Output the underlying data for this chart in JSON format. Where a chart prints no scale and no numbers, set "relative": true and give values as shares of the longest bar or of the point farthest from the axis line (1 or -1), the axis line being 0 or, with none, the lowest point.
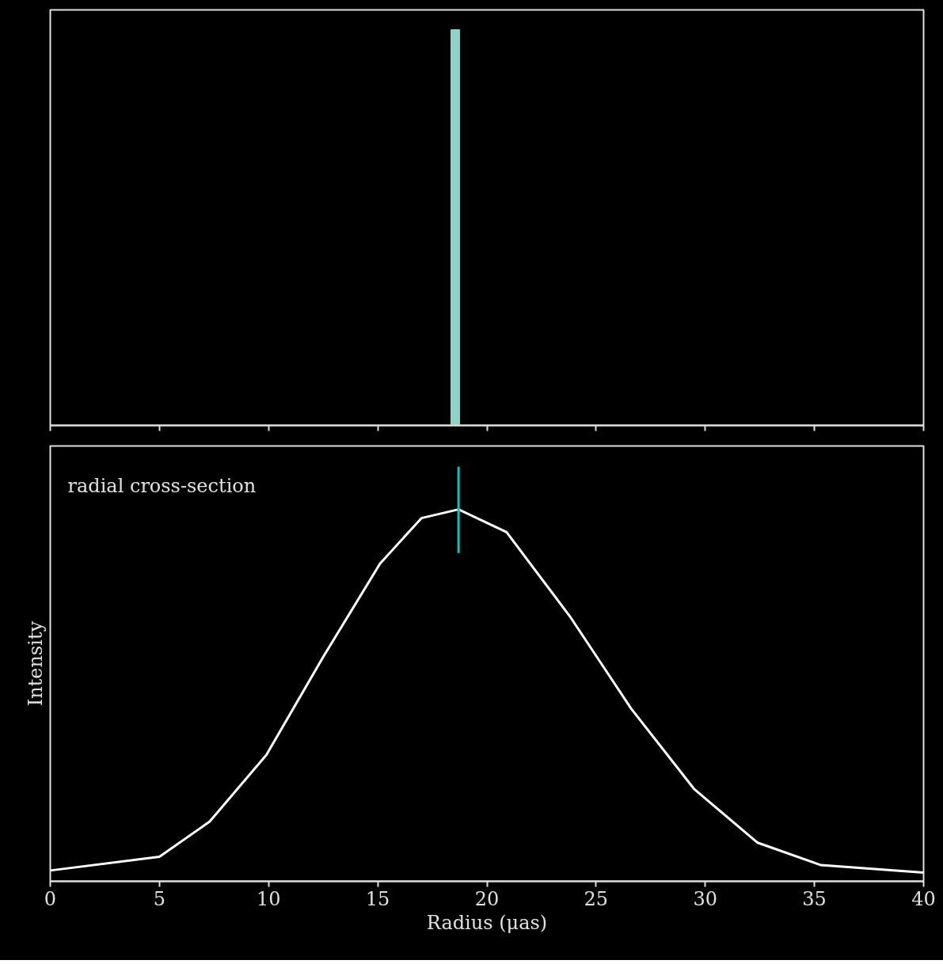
{
  "chart_data": [
    {
      "type": "bar",
      "relative": true,
      "x": [
        18.55
      ],
      "values": [
        1
      ],
      "color": "#8fd3c6",
      "xlim": [
        0,
        40
      ],
      "xticks": [
        0,
        5,
        10,
        15,
        20,
        25,
        30,
        35,
        40
      ],
      "tick_labels": false
    },
    {
      "type": "line",
      "relative": true,
      "annotations": [
        "radial cross-section"
      ],
      "xlabel": "Radius (μas)",
      "ylabel": "Intensity",
      "xlim": [
        0,
        40
      ],
      "xticks": [
        0,
        5,
        10,
        15,
        20,
        25,
        30,
        35,
        40
      ],
      "tick_labels": "x",
      "series": [
        {
          "type": "line",
          "color": "#ffffff",
          "x": [
            0,
            5,
            7.3,
            9.9,
            12.5,
            15.1,
            17.0,
            18.7,
            20.9,
            23.8,
            26.6,
            29.5,
            32.4,
            35.3,
            40
          ],
          "values": [
            0.026,
            0.059,
            0.144,
            0.305,
            0.541,
            0.766,
            0.876,
            0.897,
            0.842,
            0.639,
            0.417,
            0.222,
            0.093,
            0.039,
            0.021
          ]
        },
        {
          "type": "line",
          "color": "#17bebb",
          "x": [
            18.7,
            18.7
          ],
          "values": [
            0.792,
            1
          ]
        }
      ]
    }
  ]
}
